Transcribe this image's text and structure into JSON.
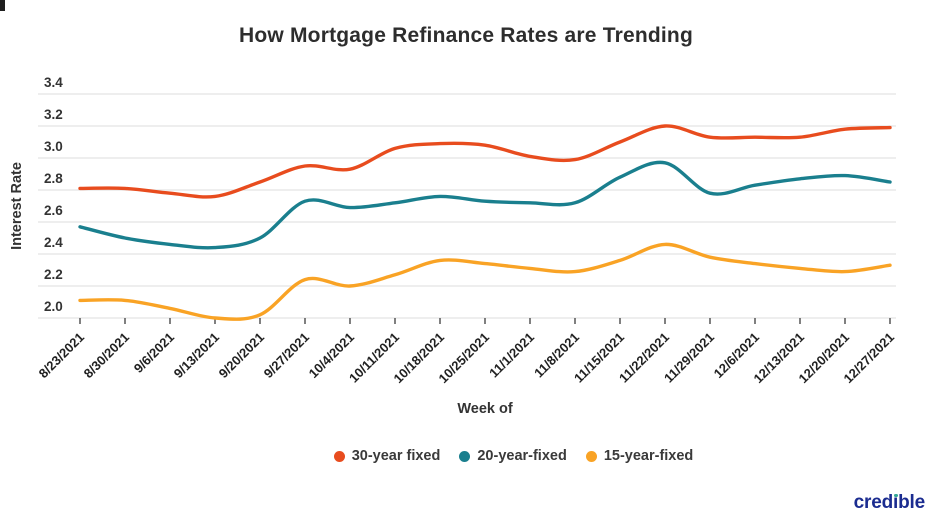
{
  "title": "How Mortgage Refinance Rates are Trending",
  "chart_data": {
    "type": "line",
    "x": [
      "8/23/2021",
      "8/30/2021",
      "9/6/2021",
      "9/13/2021",
      "9/20/2021",
      "9/27/2021",
      "10/4/2021",
      "10/11/2021",
      "10/18/2021",
      "10/25/2021",
      "11/1/2021",
      "11/8/2021",
      "11/15/2021",
      "11/22/2021",
      "11/29/2021",
      "12/6/2021",
      "12/13/2021",
      "12/20/2021",
      "12/27/2021"
    ],
    "series": [
      {
        "name": "30-year fixed",
        "color": "#e84c1e",
        "values": [
          2.81,
          2.81,
          2.78,
          2.76,
          2.85,
          2.95,
          2.93,
          3.06,
          3.09,
          3.08,
          3.01,
          2.99,
          3.1,
          3.2,
          3.13,
          3.13,
          3.13,
          3.18,
          3.19
        ]
      },
      {
        "name": "20-year-fixed",
        "color": "#1a7f8e",
        "values": [
          2.57,
          2.5,
          2.46,
          2.44,
          2.5,
          2.73,
          2.69,
          2.72,
          2.76,
          2.73,
          2.72,
          2.72,
          2.88,
          2.97,
          2.78,
          2.83,
          2.87,
          2.89,
          2.85
        ]
      },
      {
        "name": "15-year-fixed",
        "color": "#f9a325",
        "values": [
          2.11,
          2.11,
          2.06,
          2.0,
          2.02,
          2.24,
          2.2,
          2.27,
          2.36,
          2.34,
          2.31,
          2.29,
          2.36,
          2.46,
          2.38,
          2.34,
          2.31,
          2.29,
          2.33
        ]
      }
    ],
    "xlabel": "Week of",
    "ylabel": "Interest Rate",
    "ylim": [
      2.0,
      3.4
    ],
    "yticks": [
      "2.0",
      "2.2",
      "2.4",
      "2.6",
      "2.8",
      "3.0",
      "3.2",
      "3.4"
    ],
    "grid": true,
    "legend_position": "bottom"
  },
  "branding": {
    "logo_text": "credible"
  },
  "colors": {
    "background": "#ffffff",
    "gridline": "#e4e4e4",
    "tick_text": "#333333",
    "title_text": "#2d2d2d",
    "logo_navy": "#1b2c90",
    "logo_dot_teal": "#35a795"
  }
}
